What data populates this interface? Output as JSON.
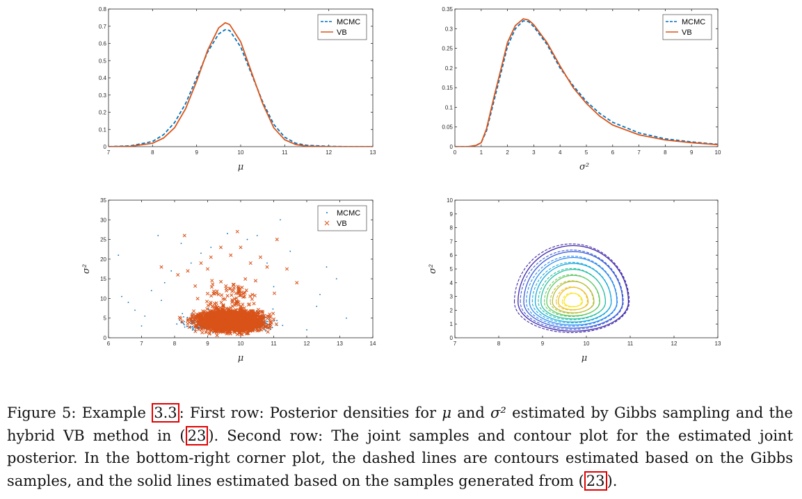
{
  "figure": {
    "colors": {
      "mcmc": "#0072BD",
      "vb": "#D95319",
      "axis": "#262626"
    },
    "caption": {
      "label": "Figure 5:",
      "seg1": " Example ",
      "ref1": "3.3",
      "seg2": ": First row: Posterior densities for ",
      "mu": "μ",
      "seg3": " and ",
      "sigma2": "σ²",
      "seg4": " estimated by Gibbs sampling and the hybrid VB method in (",
      "ref2": "23",
      "seg5": "). Second row: The joint samples and contour plot for the estimated joint posterior. In the bottom-right corner plot, the dashed lines are contours estimated based on the Gibbs samples, and the solid lines estimated based on the samples generated from (",
      "ref3": "23",
      "seg6": ")."
    }
  },
  "chart_data": [
    {
      "type": "line",
      "xlabel": "μ",
      "ylabel": "",
      "xlim": [
        7,
        13
      ],
      "ylim": [
        0,
        0.8
      ],
      "xticks": [
        7,
        8,
        9,
        10,
        11,
        12,
        13
      ],
      "yticks": [
        0,
        0.1,
        0.2,
        0.3,
        0.4,
        0.5,
        0.6,
        0.7,
        0.8
      ],
      "legend": "top-right",
      "series": [
        {
          "name": "MCMC",
          "style": "dashed",
          "x": [
            7.0,
            7.5,
            8.0,
            8.25,
            8.5,
            8.75,
            9.0,
            9.25,
            9.5,
            9.65,
            9.75,
            10.0,
            10.25,
            10.5,
            10.75,
            11.0,
            11.25,
            11.5,
            12.0,
            12.5,
            13.0
          ],
          "y": [
            0.0,
            0.005,
            0.03,
            0.07,
            0.14,
            0.25,
            0.4,
            0.55,
            0.655,
            0.68,
            0.675,
            0.58,
            0.42,
            0.26,
            0.13,
            0.055,
            0.02,
            0.008,
            0.002,
            0.0,
            0.0
          ]
        },
        {
          "name": "VB",
          "style": "solid",
          "x": [
            7.0,
            7.5,
            8.0,
            8.25,
            8.5,
            8.75,
            9.0,
            9.25,
            9.5,
            9.65,
            9.75,
            10.0,
            10.25,
            10.5,
            10.75,
            11.0,
            11.25,
            11.5,
            12.0,
            12.5,
            13.0
          ],
          "y": [
            0.0,
            0.002,
            0.02,
            0.05,
            0.11,
            0.22,
            0.38,
            0.56,
            0.69,
            0.72,
            0.71,
            0.61,
            0.43,
            0.25,
            0.11,
            0.04,
            0.012,
            0.003,
            0.0,
            0.0,
            0.0
          ]
        }
      ]
    },
    {
      "type": "line",
      "xlabel": "σ²",
      "ylabel": "",
      "xlim": [
        0,
        10
      ],
      "ylim": [
        0,
        0.35
      ],
      "xticks": [
        0,
        1,
        2,
        3,
        4,
        5,
        6,
        7,
        8,
        9,
        10
      ],
      "yticks": [
        0,
        0.05,
        0.1,
        0.15,
        0.2,
        0.25,
        0.3,
        0.35
      ],
      "legend": "top-right",
      "series": [
        {
          "name": "MCMC",
          "style": "dashed",
          "x": [
            0,
            0.5,
            0.8,
            1.0,
            1.2,
            1.5,
            1.8,
            2.0,
            2.3,
            2.6,
            2.8,
            3.0,
            3.5,
            4.0,
            4.5,
            5.0,
            5.5,
            6.0,
            7.0,
            8.0,
            9.0,
            10.0
          ],
          "y": [
            0,
            0.0,
            0.003,
            0.01,
            0.04,
            0.12,
            0.2,
            0.255,
            0.3,
            0.32,
            0.318,
            0.305,
            0.26,
            0.2,
            0.155,
            0.115,
            0.085,
            0.062,
            0.035,
            0.02,
            0.012,
            0.006
          ]
        },
        {
          "name": "VB",
          "style": "solid",
          "x": [
            0,
            0.5,
            0.8,
            1.0,
            1.2,
            1.5,
            1.8,
            2.0,
            2.3,
            2.6,
            2.8,
            3.0,
            3.5,
            4.0,
            4.5,
            5.0,
            5.5,
            6.0,
            7.0,
            8.0,
            9.0,
            10.0
          ],
          "y": [
            0,
            0.0,
            0.003,
            0.01,
            0.045,
            0.13,
            0.21,
            0.265,
            0.308,
            0.325,
            0.322,
            0.31,
            0.265,
            0.205,
            0.15,
            0.11,
            0.078,
            0.055,
            0.03,
            0.017,
            0.01,
            0.005
          ]
        }
      ]
    },
    {
      "type": "scatter",
      "xlabel": "μ",
      "ylabel": "σ²",
      "xlim": [
        6,
        14
      ],
      "ylim": [
        0,
        35
      ],
      "xticks": [
        6,
        7,
        8,
        9,
        10,
        11,
        12,
        13,
        14
      ],
      "yticks": [
        0,
        5,
        10,
        15,
        20,
        25,
        30,
        35
      ],
      "legend": "top-right",
      "series": [
        {
          "name": "MCMC",
          "marker": "dot",
          "points": [
            [
              6.3,
              21
            ],
            [
              6.4,
              10.5
            ],
            [
              6.6,
              9
            ],
            [
              6.8,
              7
            ],
            [
              7.1,
              5.5
            ],
            [
              7.3,
              12
            ],
            [
              7.5,
              26
            ],
            [
              7.6,
              9.5
            ],
            [
              7.9,
              17
            ],
            [
              8.2,
              24
            ],
            [
              8.5,
              19
            ],
            [
              9.1,
              23
            ],
            [
              9.6,
              26.5
            ],
            [
              10.2,
              25
            ],
            [
              10.5,
              26
            ],
            [
              10.8,
              19
            ],
            [
              11.2,
              30
            ],
            [
              11.5,
              22
            ],
            [
              12.3,
              8
            ],
            [
              12.6,
              18
            ],
            [
              12.9,
              15
            ],
            [
              13.2,
              5
            ],
            [
              12.4,
              11
            ],
            [
              7.0,
              3
            ],
            [
              12.0,
              2
            ],
            [
              8.8,
              21.5
            ],
            [
              11.0,
              13
            ],
            [
              7.7,
              14
            ]
          ]
        },
        {
          "name": "VB",
          "marker": "x",
          "points": [
            [
              8.8,
              19
            ],
            [
              9.1,
              20.5
            ],
            [
              9.4,
              23
            ],
            [
              9.7,
              21
            ],
            [
              10.0,
              23
            ],
            [
              10.3,
              19
            ],
            [
              10.6,
              20.5
            ],
            [
              11.1,
              25
            ],
            [
              8.4,
              17
            ],
            [
              7.6,
              18
            ],
            [
              8.1,
              16
            ],
            [
              11.4,
              17.5
            ],
            [
              11.7,
              14
            ],
            [
              9.9,
              27
            ],
            [
              9.0,
              17.5
            ],
            [
              10.8,
              18
            ],
            [
              8.3,
              26
            ]
          ]
        }
      ],
      "note_density": "dense core of samples near μ≈9.7, σ²≈1–10"
    },
    {
      "type": "contour",
      "xlabel": "μ",
      "ylabel": "σ²",
      "xlim": [
        7,
        13
      ],
      "ylim": [
        0,
        10
      ],
      "xticks": [
        7,
        8,
        9,
        10,
        11,
        12,
        13
      ],
      "yticks": [
        0,
        1,
        2,
        3,
        4,
        5,
        6,
        7,
        8,
        9,
        10
      ],
      "center": [
        9.7,
        2.6
      ],
      "levels": 9,
      "series": [
        {
          "name": "MCMC",
          "style": "dashed"
        },
        {
          "name": "VB",
          "style": "solid"
        }
      ]
    }
  ]
}
